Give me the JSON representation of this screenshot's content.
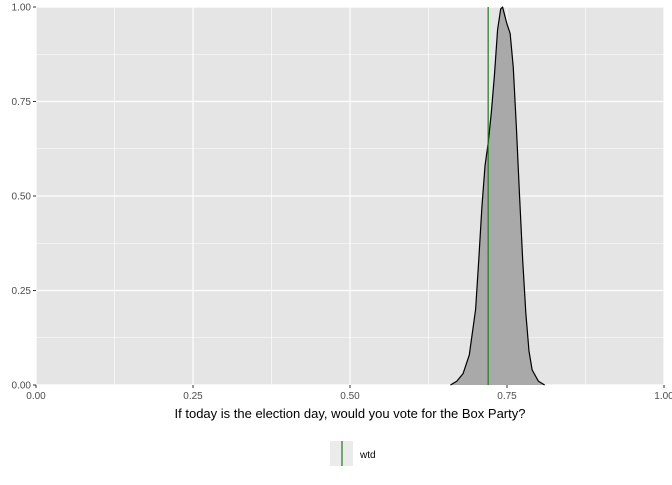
{
  "chart_data": {
    "type": "area",
    "title": "",
    "xlabel": "If today is the election day, would you vote for the Box Party?",
    "ylabel": "",
    "xlim": [
      0,
      1
    ],
    "ylim": [
      0,
      1
    ],
    "x_ticks": [
      0,
      0.25,
      0.5,
      0.75,
      1
    ],
    "x_tick_labels": [
      "0.00",
      "0.25",
      "0.50",
      "0.75",
      "1.00"
    ],
    "y_ticks": [
      0,
      0.25,
      0.5,
      0.75,
      1
    ],
    "y_tick_labels": [
      "0.00",
      "0.25",
      "0.50",
      "0.75",
      "1.00"
    ],
    "grid": true,
    "series": [
      {
        "fill": "#a9a9a9",
        "line_color": "#000000",
        "x": [
          0.66,
          0.67,
          0.68,
          0.69,
          0.7,
          0.705,
          0.71,
          0.715,
          0.72,
          0.725,
          0.73,
          0.735,
          0.74,
          0.743,
          0.746,
          0.75,
          0.755,
          0.76,
          0.765,
          0.77,
          0.775,
          0.78,
          0.785,
          0.79,
          0.8,
          0.81
        ],
        "y": [
          0.0,
          0.01,
          0.03,
          0.08,
          0.2,
          0.33,
          0.47,
          0.58,
          0.64,
          0.72,
          0.82,
          0.94,
          0.995,
          1.0,
          0.98,
          0.955,
          0.93,
          0.84,
          0.68,
          0.5,
          0.33,
          0.19,
          0.09,
          0.04,
          0.01,
          0.0
        ]
      }
    ],
    "reference_lines": [
      {
        "name": "wtd",
        "x": 0.72,
        "color": "#1f7a1f"
      }
    ],
    "legend": {
      "position": "bottom",
      "entries": [
        {
          "label": "wtd",
          "color": "#1f7a1f"
        }
      ]
    },
    "colors": {
      "panel_background": "#e5e5e5",
      "grid": "#ffffff"
    }
  }
}
